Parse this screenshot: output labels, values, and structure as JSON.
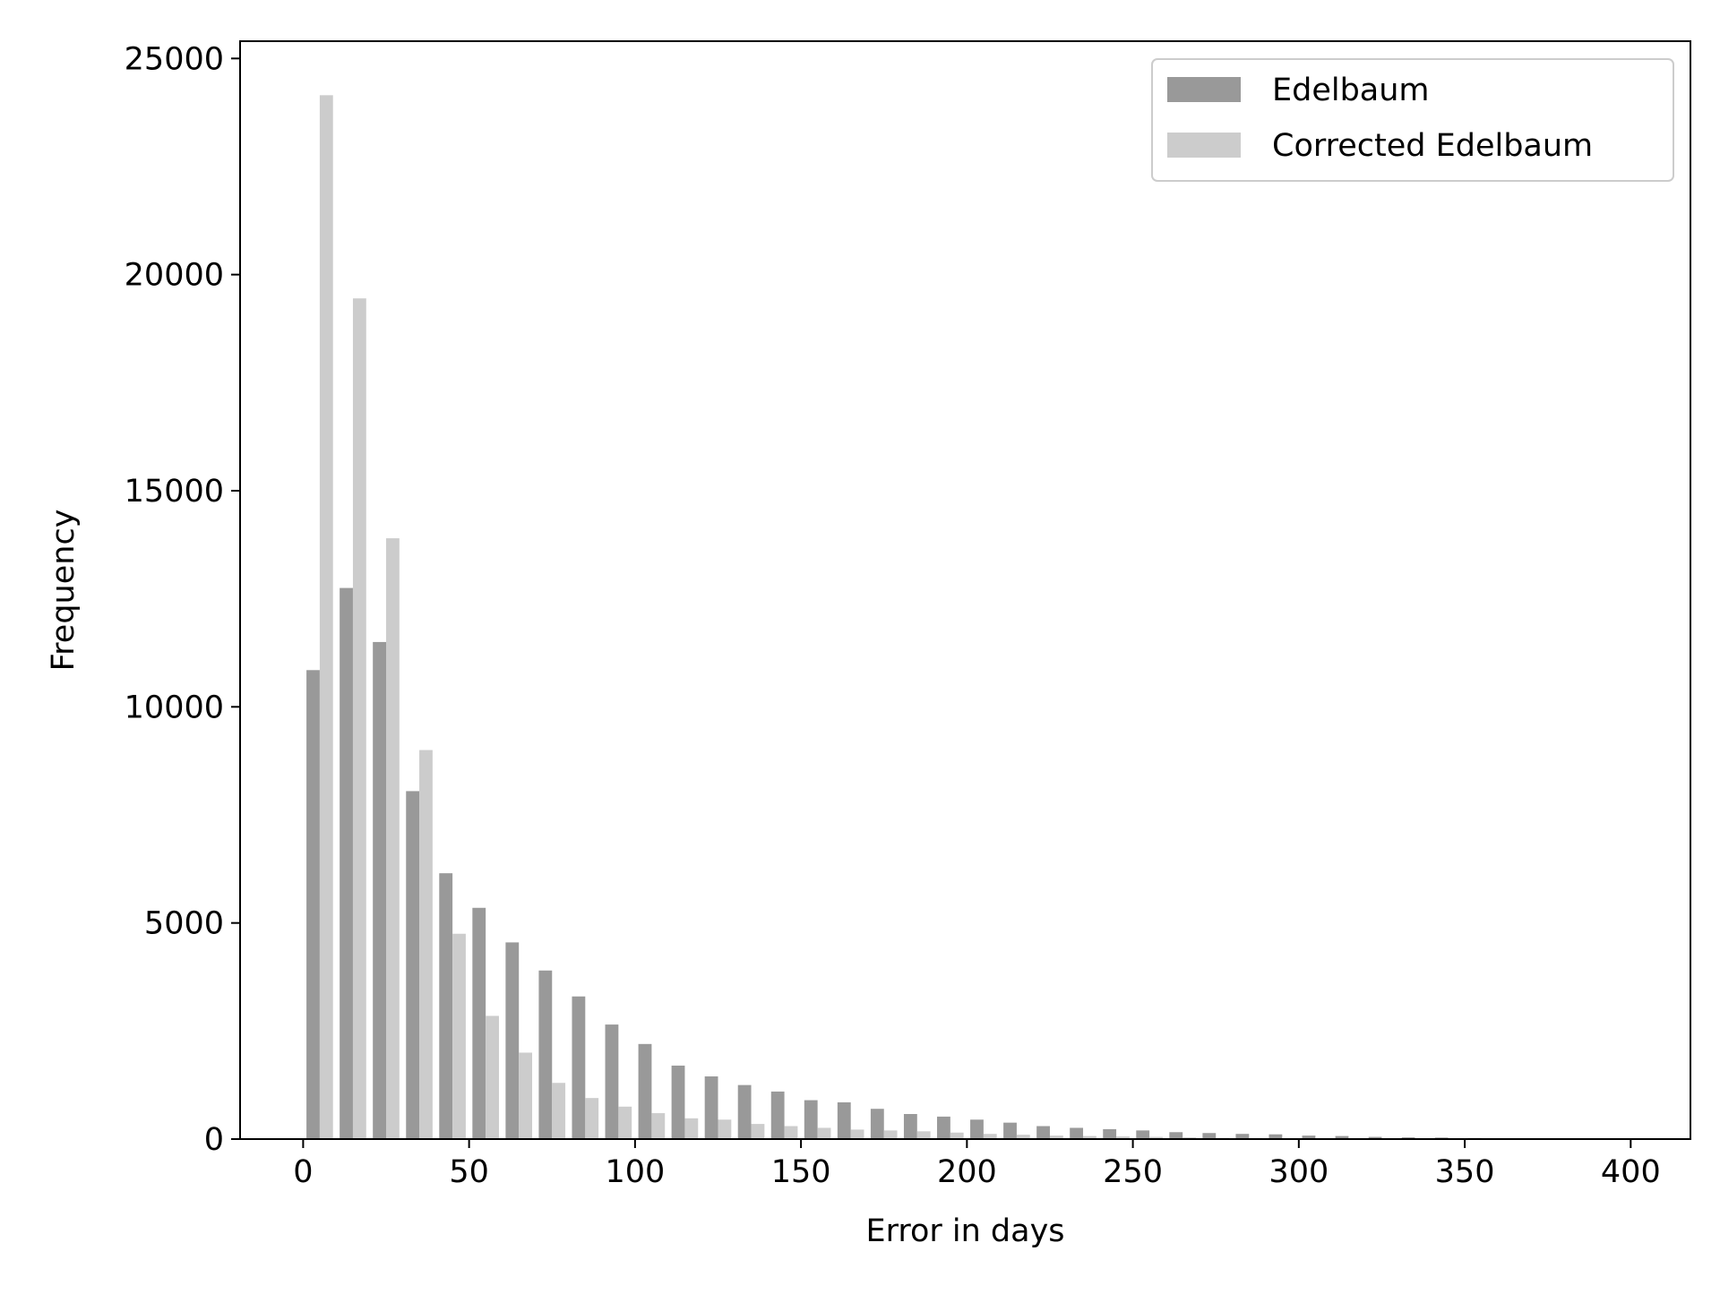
{
  "chart_data": {
    "type": "bar",
    "title": "",
    "xlabel": "Error in days",
    "ylabel": "Frequency",
    "xlim": [
      -19,
      418
    ],
    "ylim": [
      0,
      25400
    ],
    "xticks": [
      0,
      50,
      100,
      150,
      200,
      250,
      300,
      350,
      400
    ],
    "yticks": [
      0,
      5000,
      10000,
      15000,
      20000,
      25000
    ],
    "x_tick_labels": [
      "0",
      "50",
      "100",
      "150",
      "200",
      "250",
      "300",
      "350",
      "400"
    ],
    "y_tick_labels": [
      "0",
      "5000",
      "10000",
      "15000",
      "20000",
      "25000"
    ],
    "grid": false,
    "legend_position": "top-right",
    "bin_width": 10,
    "x": [
      0,
      10,
      20,
      30,
      40,
      50,
      60,
      70,
      80,
      90,
      100,
      110,
      120,
      130,
      140,
      150,
      160,
      170,
      180,
      190,
      200,
      210,
      220,
      230,
      240,
      250,
      260,
      270,
      280,
      290,
      300,
      310,
      320,
      330,
      340,
      350,
      360,
      370,
      380,
      390
    ],
    "series": [
      {
        "name": "Edelbaum",
        "color": "#999999",
        "values": [
          10850,
          12750,
          11500,
          8050,
          6150,
          5350,
          4550,
          3900,
          3300,
          2650,
          2200,
          1700,
          1450,
          1250,
          1100,
          900,
          850,
          700,
          580,
          520,
          450,
          380,
          300,
          260,
          230,
          200,
          160,
          140,
          120,
          110,
          80,
          70,
          50,
          40,
          35,
          25,
          15,
          10,
          5,
          5
        ]
      },
      {
        "name": "Corrected Edelbaum",
        "color": "#cccccc",
        "values": [
          24150,
          19450,
          13900,
          9000,
          4750,
          2850,
          2000,
          1300,
          950,
          750,
          600,
          480,
          450,
          350,
          300,
          260,
          220,
          200,
          180,
          150,
          120,
          100,
          80,
          70,
          60,
          50,
          40,
          30,
          25,
          20,
          15,
          12,
          10,
          8,
          6,
          5,
          4,
          3,
          2,
          1
        ]
      }
    ]
  }
}
